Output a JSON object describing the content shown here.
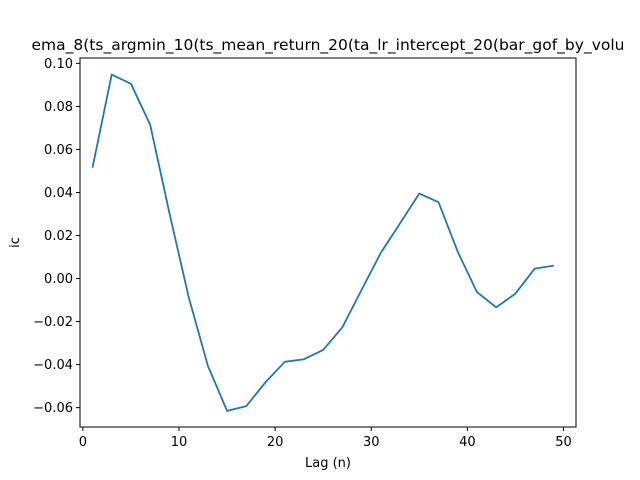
{
  "chart_data": {
    "type": "line",
    "title": "ema_8(ts_argmin_10(ts_mean_return_20(ta_lr_intercept_20(bar_gof_by_volu",
    "xlabel": "Lag (n)",
    "ylabel": "ic",
    "xlim": [
      -0.3,
      51.3
    ],
    "ylim": [
      -0.069,
      0.1025
    ],
    "xticks": [
      0,
      10,
      20,
      30,
      40,
      50
    ],
    "yticks": [
      -0.06,
      -0.04,
      -0.02,
      0.0,
      0.02,
      0.04,
      0.06,
      0.08,
      0.1
    ],
    "ytick_labels": [
      "−0.06",
      "−0.04",
      "−0.02",
      "0.00",
      "0.02",
      "0.04",
      "0.06",
      "0.08",
      "0.10"
    ],
    "grid": false,
    "series": [
      {
        "color": "#1f77b4",
        "x": [
          1,
          3,
          5,
          7,
          9,
          11,
          13,
          15,
          17,
          19,
          21,
          23,
          25,
          27,
          29,
          31,
          33,
          35,
          37,
          39,
          41,
          43,
          45,
          47,
          49
        ],
        "y": [
          0.0515,
          0.0948,
          0.0905,
          0.0715,
          0.0305,
          -0.0085,
          -0.0405,
          -0.0615,
          -0.0593,
          -0.0482,
          -0.0387,
          -0.0375,
          -0.0332,
          -0.0226,
          -0.0052,
          0.012,
          0.0257,
          0.0395,
          0.0355,
          0.0124,
          -0.0063,
          -0.0134,
          -0.007,
          0.0046,
          0.006
        ]
      }
    ]
  }
}
